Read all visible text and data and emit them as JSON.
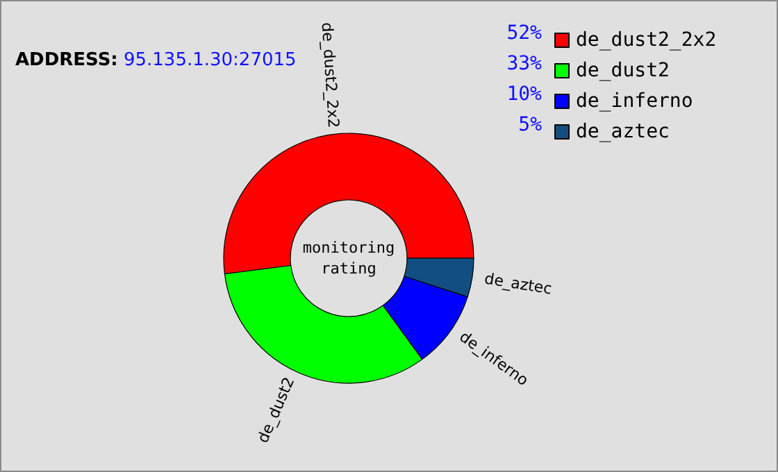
{
  "chart_data": {
    "type": "donut",
    "categories": [
      "de_dust2_2x2",
      "de_dust2",
      "de_inferno",
      "de_aztec"
    ],
    "values": [
      52,
      33,
      10,
      5
    ],
    "value_labels": [
      "52%",
      "33%",
      "10%",
      "5%"
    ],
    "colors": [
      "#ff0000",
      "#00ff00",
      "#0000ff",
      "#134e83"
    ],
    "legend": "top right",
    "annotations": [
      "ADDRESS: 95.135.1.30:27015",
      "monitoring rating"
    ]
  }
}
